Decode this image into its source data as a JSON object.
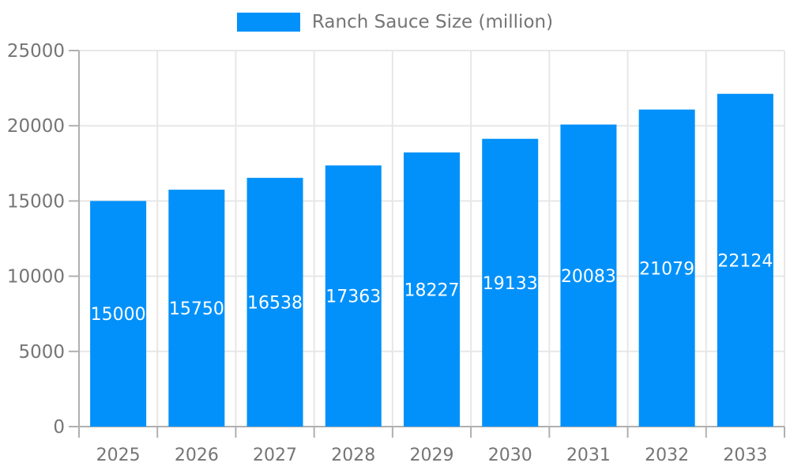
{
  "chart_data": {
    "type": "bar",
    "title": "Ranch Sauce Size (million)",
    "categories": [
      "2025",
      "2026",
      "2027",
      "2028",
      "2029",
      "2030",
      "2031",
      "2032",
      "2033"
    ],
    "series": [
      {
        "name": "Ranch Sauce Size (million)",
        "values": [
          15000,
          15750,
          16538,
          17363,
          18227,
          19133,
          20083,
          21079,
          22124
        ]
      }
    ],
    "xlabel": "",
    "ylabel": "",
    "ylim": [
      0,
      25000
    ],
    "yticks": [
      0,
      5000,
      10000,
      15000,
      20000,
      25000
    ],
    "grid": true,
    "legend_position": "top",
    "value_labels": "inside-middle",
    "colors": {
      "bar": "#0291fa",
      "grid": "#e7e7e7",
      "axis": "#b0b0b0",
      "tick_label": "#757575",
      "value_label": "#ffffff",
      "legend_label": "#757575"
    }
  }
}
